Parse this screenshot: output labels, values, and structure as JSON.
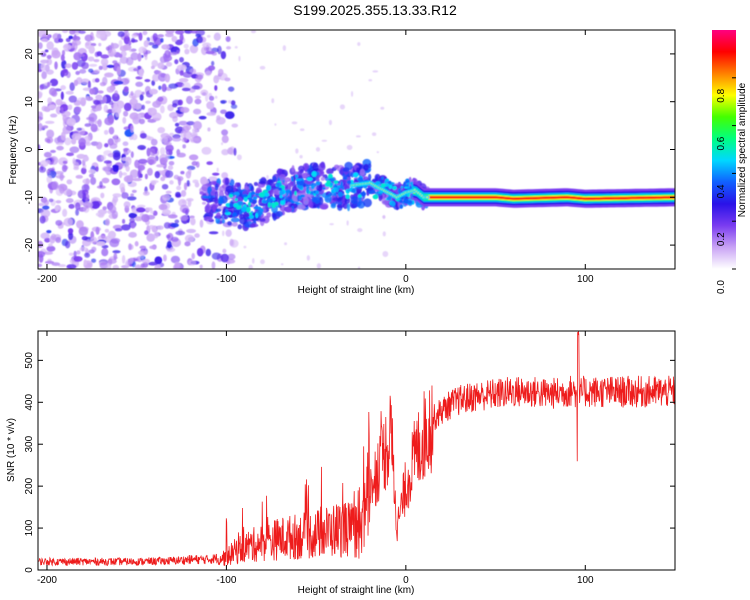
{
  "title": "S199.2025.355.13.33.R12",
  "chart_data": [
    {
      "type": "heatmap",
      "name": "spectrogram",
      "xlabel": "Height of straight line (km)",
      "ylabel": "Frequency (Hz)",
      "xlim": [
        -205,
        150
      ],
      "ylim": [
        -25,
        25
      ],
      "xticks": [
        -200,
        -100,
        0,
        100
      ],
      "yticks": [
        -20,
        -10,
        0,
        10,
        20
      ],
      "colorbar": {
        "label": "Normalized spectral amplitude",
        "range": [
          0,
          1
        ],
        "ticks": [
          0.0,
          0.2,
          0.4,
          0.6,
          0.8
        ],
        "tick_labels": [
          "0.0",
          "0.2",
          "0.4",
          "0.6",
          "0.8"
        ],
        "colormap": [
          "#ffffff",
          "#c9a3f5",
          "#7a3cf0",
          "#2a12e8",
          "#1060ff",
          "#00d8ff",
          "#00ff80",
          "#44ff00",
          "#ffff00",
          "#ff8000",
          "#ff0000",
          "#ff0080"
        ]
      },
      "ridge": [
        {
          "x": -100,
          "freq": -11
        },
        {
          "x": -90,
          "freq": -12
        },
        {
          "x": -80,
          "freq": -11
        },
        {
          "x": -70,
          "freq": -9
        },
        {
          "x": -60,
          "freq": -8
        },
        {
          "x": -50,
          "freq": -7.5
        },
        {
          "x": -40,
          "freq": -8
        },
        {
          "x": -30,
          "freq": -7.5
        },
        {
          "x": -20,
          "freq": -7
        },
        {
          "x": -15,
          "freq": -8
        },
        {
          "x": -10,
          "freq": -9
        },
        {
          "x": -5,
          "freq": -10
        },
        {
          "x": 0,
          "freq": -9
        },
        {
          "x": 5,
          "freq": -8.5
        },
        {
          "x": 10,
          "freq": -10
        },
        {
          "x": 50,
          "freq": -10
        },
        {
          "x": 60,
          "freq": -10.3
        },
        {
          "x": 90,
          "freq": -10
        },
        {
          "x": 100,
          "freq": -10.3
        },
        {
          "x": 150,
          "freq": -10
        }
      ]
    },
    {
      "type": "line",
      "name": "snr",
      "xlabel": "Height of straight line (km)",
      "ylabel": "SNR (10 * v/v)",
      "xlim": [
        -205,
        150
      ],
      "ylim": [
        0,
        570
      ],
      "xticks": [
        -200,
        -100,
        0,
        100
      ],
      "yticks": [
        0,
        100,
        200,
        300,
        400,
        500
      ],
      "color": "#ee1c1c",
      "series": [
        {
          "name": "SNR",
          "x": [
            -205,
            -180,
            -150,
            -130,
            -120,
            -110,
            -105,
            -100,
            -95,
            -90,
            -80,
            -70,
            -60,
            -50,
            -40,
            -35,
            -30,
            -25,
            -20,
            -18,
            -15,
            -12,
            -10,
            -8,
            -5,
            0,
            5,
            10,
            15,
            20,
            25,
            30,
            40,
            50,
            60,
            70,
            80,
            90,
            94,
            96,
            98,
            100,
            110,
            120,
            130,
            140,
            150
          ],
          "values": [
            20,
            20,
            20,
            22,
            25,
            25,
            28,
            30,
            45,
            55,
            65,
            75,
            80,
            85,
            95,
            100,
            95,
            85,
            200,
            220,
            250,
            280,
            300,
            315,
            100,
            200,
            270,
            320,
            360,
            380,
            395,
            405,
            415,
            420,
            425,
            425,
            420,
            425,
            430,
            400,
            425,
            425,
            425,
            425,
            425,
            425,
            425
          ]
        }
      ],
      "features": [
        {
          "x": -100,
          "value": 130,
          "kind": "spike"
        },
        {
          "x": 96,
          "value": 570,
          "kind": "spike"
        },
        {
          "x": 96,
          "value": 255,
          "kind": "dip"
        }
      ]
    }
  ]
}
